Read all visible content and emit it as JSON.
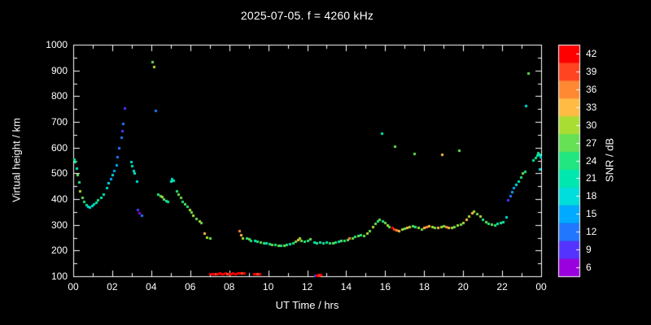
{
  "colors": {
    "background": "#000000",
    "plot_bg": "#000000",
    "axis": "#ffffff",
    "text": "#ffffff"
  },
  "chart_data": {
    "type": "scatter",
    "title": "2025-07-05. f = 4260 kHz",
    "xlabel": "UT Time / hrs",
    "ylabel": "Virtual height / km",
    "xlim": [
      0,
      24
    ],
    "ylim": [
      100,
      1000
    ],
    "grid": false,
    "xticks": [
      {
        "v": 0,
        "label": "00"
      },
      {
        "v": 2,
        "label": "02"
      },
      {
        "v": 4,
        "label": "04"
      },
      {
        "v": 6,
        "label": "06"
      },
      {
        "v": 8,
        "label": "08"
      },
      {
        "v": 10,
        "label": "10"
      },
      {
        "v": 12,
        "label": "12"
      },
      {
        "v": 14,
        "label": "14"
      },
      {
        "v": 16,
        "label": "16"
      },
      {
        "v": 18,
        "label": "18"
      },
      {
        "v": 20,
        "label": "20"
      },
      {
        "v": 22,
        "label": "22"
      },
      {
        "v": 24,
        "label": "00"
      }
    ],
    "yticks": [
      {
        "v": 100,
        "label": "100"
      },
      {
        "v": 200,
        "label": "200"
      },
      {
        "v": 300,
        "label": "300"
      },
      {
        "v": 400,
        "label": "400"
      },
      {
        "v": 500,
        "label": "500"
      },
      {
        "v": 600,
        "label": "600"
      },
      {
        "v": 700,
        "label": "700"
      },
      {
        "v": 800,
        "label": "800"
      },
      {
        "v": 900,
        "label": "900"
      },
      {
        "v": 1000,
        "label": "1000"
      }
    ],
    "colorbar": {
      "label": "SNR / dB",
      "min": 6,
      "max": 42,
      "segments": [
        {
          "value": 6,
          "color": "#9900dd"
        },
        {
          "value": 9,
          "color": "#5533ff"
        },
        {
          "value": 12,
          "color": "#2277ff"
        },
        {
          "value": 15,
          "color": "#00aaff"
        },
        {
          "value": 18,
          "color": "#00dddd"
        },
        {
          "value": 21,
          "color": "#00e8b0"
        },
        {
          "value": 24,
          "color": "#22e680"
        },
        {
          "value": 27,
          "color": "#66e055"
        },
        {
          "value": 30,
          "color": "#aadd33"
        },
        {
          "value": 33,
          "color": "#ffbb44"
        },
        {
          "value": 36,
          "color": "#ff8833"
        },
        {
          "value": 39,
          "color": "#ff4422"
        },
        {
          "value": 42,
          "color": "#ff0000"
        }
      ]
    },
    "points": [
      [
        0.05,
        555,
        21
      ],
      [
        0.1,
        545,
        24
      ],
      [
        0.15,
        520,
        21
      ],
      [
        0.2,
        495,
        27
      ],
      [
        0.3,
        465,
        24
      ],
      [
        0.35,
        432,
        30
      ],
      [
        0.45,
        406,
        27
      ],
      [
        0.55,
        390,
        24
      ],
      [
        0.65,
        378,
        21
      ],
      [
        0.75,
        372,
        21
      ],
      [
        0.85,
        370,
        18
      ],
      [
        0.95,
        374,
        18
      ],
      [
        1.05,
        380,
        21
      ],
      [
        1.15,
        388,
        21
      ],
      [
        1.25,
        396,
        24
      ],
      [
        1.4,
        406,
        21
      ],
      [
        1.55,
        420,
        21
      ],
      [
        1.7,
        444,
        18
      ],
      [
        1.8,
        464,
        18
      ],
      [
        1.9,
        480,
        15
      ],
      [
        2.0,
        496,
        18
      ],
      [
        2.1,
        512,
        15
      ],
      [
        2.2,
        532,
        15
      ],
      [
        2.25,
        565,
        12
      ],
      [
        2.35,
        600,
        12
      ],
      [
        2.45,
        640,
        12
      ],
      [
        2.5,
        665,
        9
      ],
      [
        2.55,
        695,
        12
      ],
      [
        2.65,
        755,
        9
      ],
      [
        2.95,
        545,
        18
      ],
      [
        3.0,
        530,
        21
      ],
      [
        3.1,
        512,
        18
      ],
      [
        3.15,
        500,
        21
      ],
      [
        3.25,
        470,
        18
      ],
      [
        3.3,
        358,
        9
      ],
      [
        3.4,
        345,
        6
      ],
      [
        3.5,
        338,
        12
      ],
      [
        4.05,
        935,
        27
      ],
      [
        4.15,
        915,
        30
      ],
      [
        4.2,
        745,
        12
      ],
      [
        4.35,
        420,
        24
      ],
      [
        4.45,
        414,
        27
      ],
      [
        4.55,
        408,
        30
      ],
      [
        4.65,
        400,
        27
      ],
      [
        4.75,
        395,
        24
      ],
      [
        4.85,
        390,
        21
      ],
      [
        5.0,
        468,
        21
      ],
      [
        5.05,
        478,
        18
      ],
      [
        5.15,
        472,
        21
      ],
      [
        5.3,
        432,
        24
      ],
      [
        5.4,
        418,
        27
      ],
      [
        5.5,
        405,
        27
      ],
      [
        5.6,
        392,
        24
      ],
      [
        5.7,
        382,
        27
      ],
      [
        5.85,
        372,
        24
      ],
      [
        5.95,
        360,
        30
      ],
      [
        6.05,
        348,
        27
      ],
      [
        6.15,
        338,
        30
      ],
      [
        6.3,
        325,
        27
      ],
      [
        6.45,
        315,
        30
      ],
      [
        6.55,
        308,
        27
      ],
      [
        6.7,
        266,
        33
      ],
      [
        6.85,
        252,
        30
      ],
      [
        7.0,
        247,
        27
      ],
      [
        7.0,
        110,
        42
      ],
      [
        7.1,
        110,
        42
      ],
      [
        7.2,
        110,
        42
      ],
      [
        7.3,
        110,
        39
      ],
      [
        7.4,
        110,
        42
      ],
      [
        7.5,
        112,
        42
      ],
      [
        7.6,
        110,
        42
      ],
      [
        7.7,
        110,
        42
      ],
      [
        7.8,
        112,
        42
      ],
      [
        7.9,
        110,
        39
      ],
      [
        8.0,
        110,
        42
      ],
      [
        8.1,
        110,
        42
      ],
      [
        8.2,
        112,
        42
      ],
      [
        8.3,
        110,
        42
      ],
      [
        8.45,
        113,
        42
      ],
      [
        8.55,
        113,
        42
      ],
      [
        8.65,
        112,
        39
      ],
      [
        8.75,
        113,
        42
      ],
      [
        9.25,
        108,
        42
      ],
      [
        9.35,
        108,
        42
      ],
      [
        9.45,
        108,
        39
      ],
      [
        9.55,
        108,
        42
      ],
      [
        8.5,
        278,
        36
      ],
      [
        8.6,
        262,
        33
      ],
      [
        8.7,
        250,
        30
      ],
      [
        8.9,
        248,
        24
      ],
      [
        9.0,
        245,
        27
      ],
      [
        9.1,
        240,
        24
      ],
      [
        9.3,
        238,
        21
      ],
      [
        9.45,
        235,
        24
      ],
      [
        9.6,
        232,
        27
      ],
      [
        9.75,
        230,
        24
      ],
      [
        9.9,
        228,
        21
      ],
      [
        10.05,
        226,
        24
      ],
      [
        10.2,
        224,
        27
      ],
      [
        10.35,
        222,
        24
      ],
      [
        10.5,
        220,
        27
      ],
      [
        10.65,
        220,
        24
      ],
      [
        10.8,
        221,
        27
      ],
      [
        10.95,
        223,
        24
      ],
      [
        11.1,
        226,
        21
      ],
      [
        11.25,
        230,
        24
      ],
      [
        11.4,
        236,
        27
      ],
      [
        11.5,
        243,
        33
      ],
      [
        11.6,
        247,
        30
      ],
      [
        11.7,
        240,
        27
      ],
      [
        11.85,
        236,
        24
      ],
      [
        12.0,
        240,
        24
      ],
      [
        12.15,
        244,
        27
      ],
      [
        12.4,
        104,
        9
      ],
      [
        12.5,
        104,
        42
      ],
      [
        12.55,
        106,
        42
      ],
      [
        12.6,
        104,
        39
      ],
      [
        12.7,
        106,
        42
      ],
      [
        12.35,
        232,
        21
      ],
      [
        12.5,
        228,
        24
      ],
      [
        12.65,
        232,
        21
      ],
      [
        12.8,
        228,
        24
      ],
      [
        13.0,
        233,
        21
      ],
      [
        13.15,
        230,
        24
      ],
      [
        13.3,
        228,
        27
      ],
      [
        13.45,
        232,
        24
      ],
      [
        13.6,
        236,
        21
      ],
      [
        13.75,
        240,
        27
      ],
      [
        13.9,
        238,
        24
      ],
      [
        14.05,
        243,
        27
      ],
      [
        14.15,
        250,
        36
      ],
      [
        14.3,
        248,
        27
      ],
      [
        14.45,
        254,
        24
      ],
      [
        14.6,
        258,
        27
      ],
      [
        14.75,
        262,
        24
      ],
      [
        14.9,
        258,
        27
      ],
      [
        15.05,
        268,
        30
      ],
      [
        15.2,
        278,
        27
      ],
      [
        15.35,
        292,
        30
      ],
      [
        15.5,
        305,
        27
      ],
      [
        15.6,
        315,
        24
      ],
      [
        15.7,
        322,
        27
      ],
      [
        15.85,
        315,
        24
      ],
      [
        16.0,
        308,
        27
      ],
      [
        15.8,
        655,
        21
      ],
      [
        16.5,
        605,
        27
      ],
      [
        17.5,
        578,
        27
      ],
      [
        18.9,
        575,
        33
      ],
      [
        19.8,
        588,
        27
      ],
      [
        16.1,
        298,
        30
      ],
      [
        16.2,
        292,
        27
      ],
      [
        16.35,
        288,
        42
      ],
      [
        16.45,
        284,
        39
      ],
      [
        16.55,
        281,
        36
      ],
      [
        16.7,
        278,
        33
      ],
      [
        16.85,
        282,
        30
      ],
      [
        17.0,
        286,
        27
      ],
      [
        17.1,
        290,
        33
      ],
      [
        17.25,
        294,
        30
      ],
      [
        17.4,
        296,
        27
      ],
      [
        17.55,
        292,
        24
      ],
      [
        17.7,
        288,
        30
      ],
      [
        17.85,
        284,
        27
      ],
      [
        18.0,
        288,
        33
      ],
      [
        18.1,
        292,
        36
      ],
      [
        18.25,
        296,
        33
      ],
      [
        18.4,
        292,
        30
      ],
      [
        18.55,
        288,
        27
      ],
      [
        18.7,
        290,
        33
      ],
      [
        18.85,
        294,
        30
      ],
      [
        19.0,
        296,
        27
      ],
      [
        19.1,
        292,
        36
      ],
      [
        19.25,
        288,
        33
      ],
      [
        19.4,
        290,
        30
      ],
      [
        19.55,
        294,
        27
      ],
      [
        19.7,
        298,
        30
      ],
      [
        19.85,
        302,
        27
      ],
      [
        20.0,
        310,
        30
      ],
      [
        20.15,
        320,
        33
      ],
      [
        20.3,
        334,
        30
      ],
      [
        20.45,
        345,
        33
      ],
      [
        20.55,
        352,
        30
      ],
      [
        20.7,
        344,
        27
      ],
      [
        20.85,
        334,
        30
      ],
      [
        21.0,
        322,
        24
      ],
      [
        21.15,
        312,
        27
      ],
      [
        21.3,
        306,
        24
      ],
      [
        21.45,
        302,
        27
      ],
      [
        21.6,
        300,
        24
      ],
      [
        21.75,
        304,
        21
      ],
      [
        21.9,
        308,
        24
      ],
      [
        22.05,
        312,
        21
      ],
      [
        22.2,
        330,
        18
      ],
      [
        22.3,
        398,
        9
      ],
      [
        22.4,
        412,
        12
      ],
      [
        22.5,
        430,
        15
      ],
      [
        22.6,
        444,
        15
      ],
      [
        22.7,
        456,
        18
      ],
      [
        22.85,
        468,
        21
      ],
      [
        22.95,
        486,
        24
      ],
      [
        23.05,
        500,
        27
      ],
      [
        23.15,
        508,
        24
      ],
      [
        23.2,
        762,
        18
      ],
      [
        23.35,
        888,
        27
      ],
      [
        23.6,
        552,
        21
      ],
      [
        23.7,
        560,
        24
      ],
      [
        23.8,
        572,
        21
      ],
      [
        23.85,
        580,
        24
      ],
      [
        23.9,
        575,
        21
      ],
      [
        23.95,
        565,
        18
      ],
      [
        23.9,
        518,
        18
      ]
    ]
  }
}
